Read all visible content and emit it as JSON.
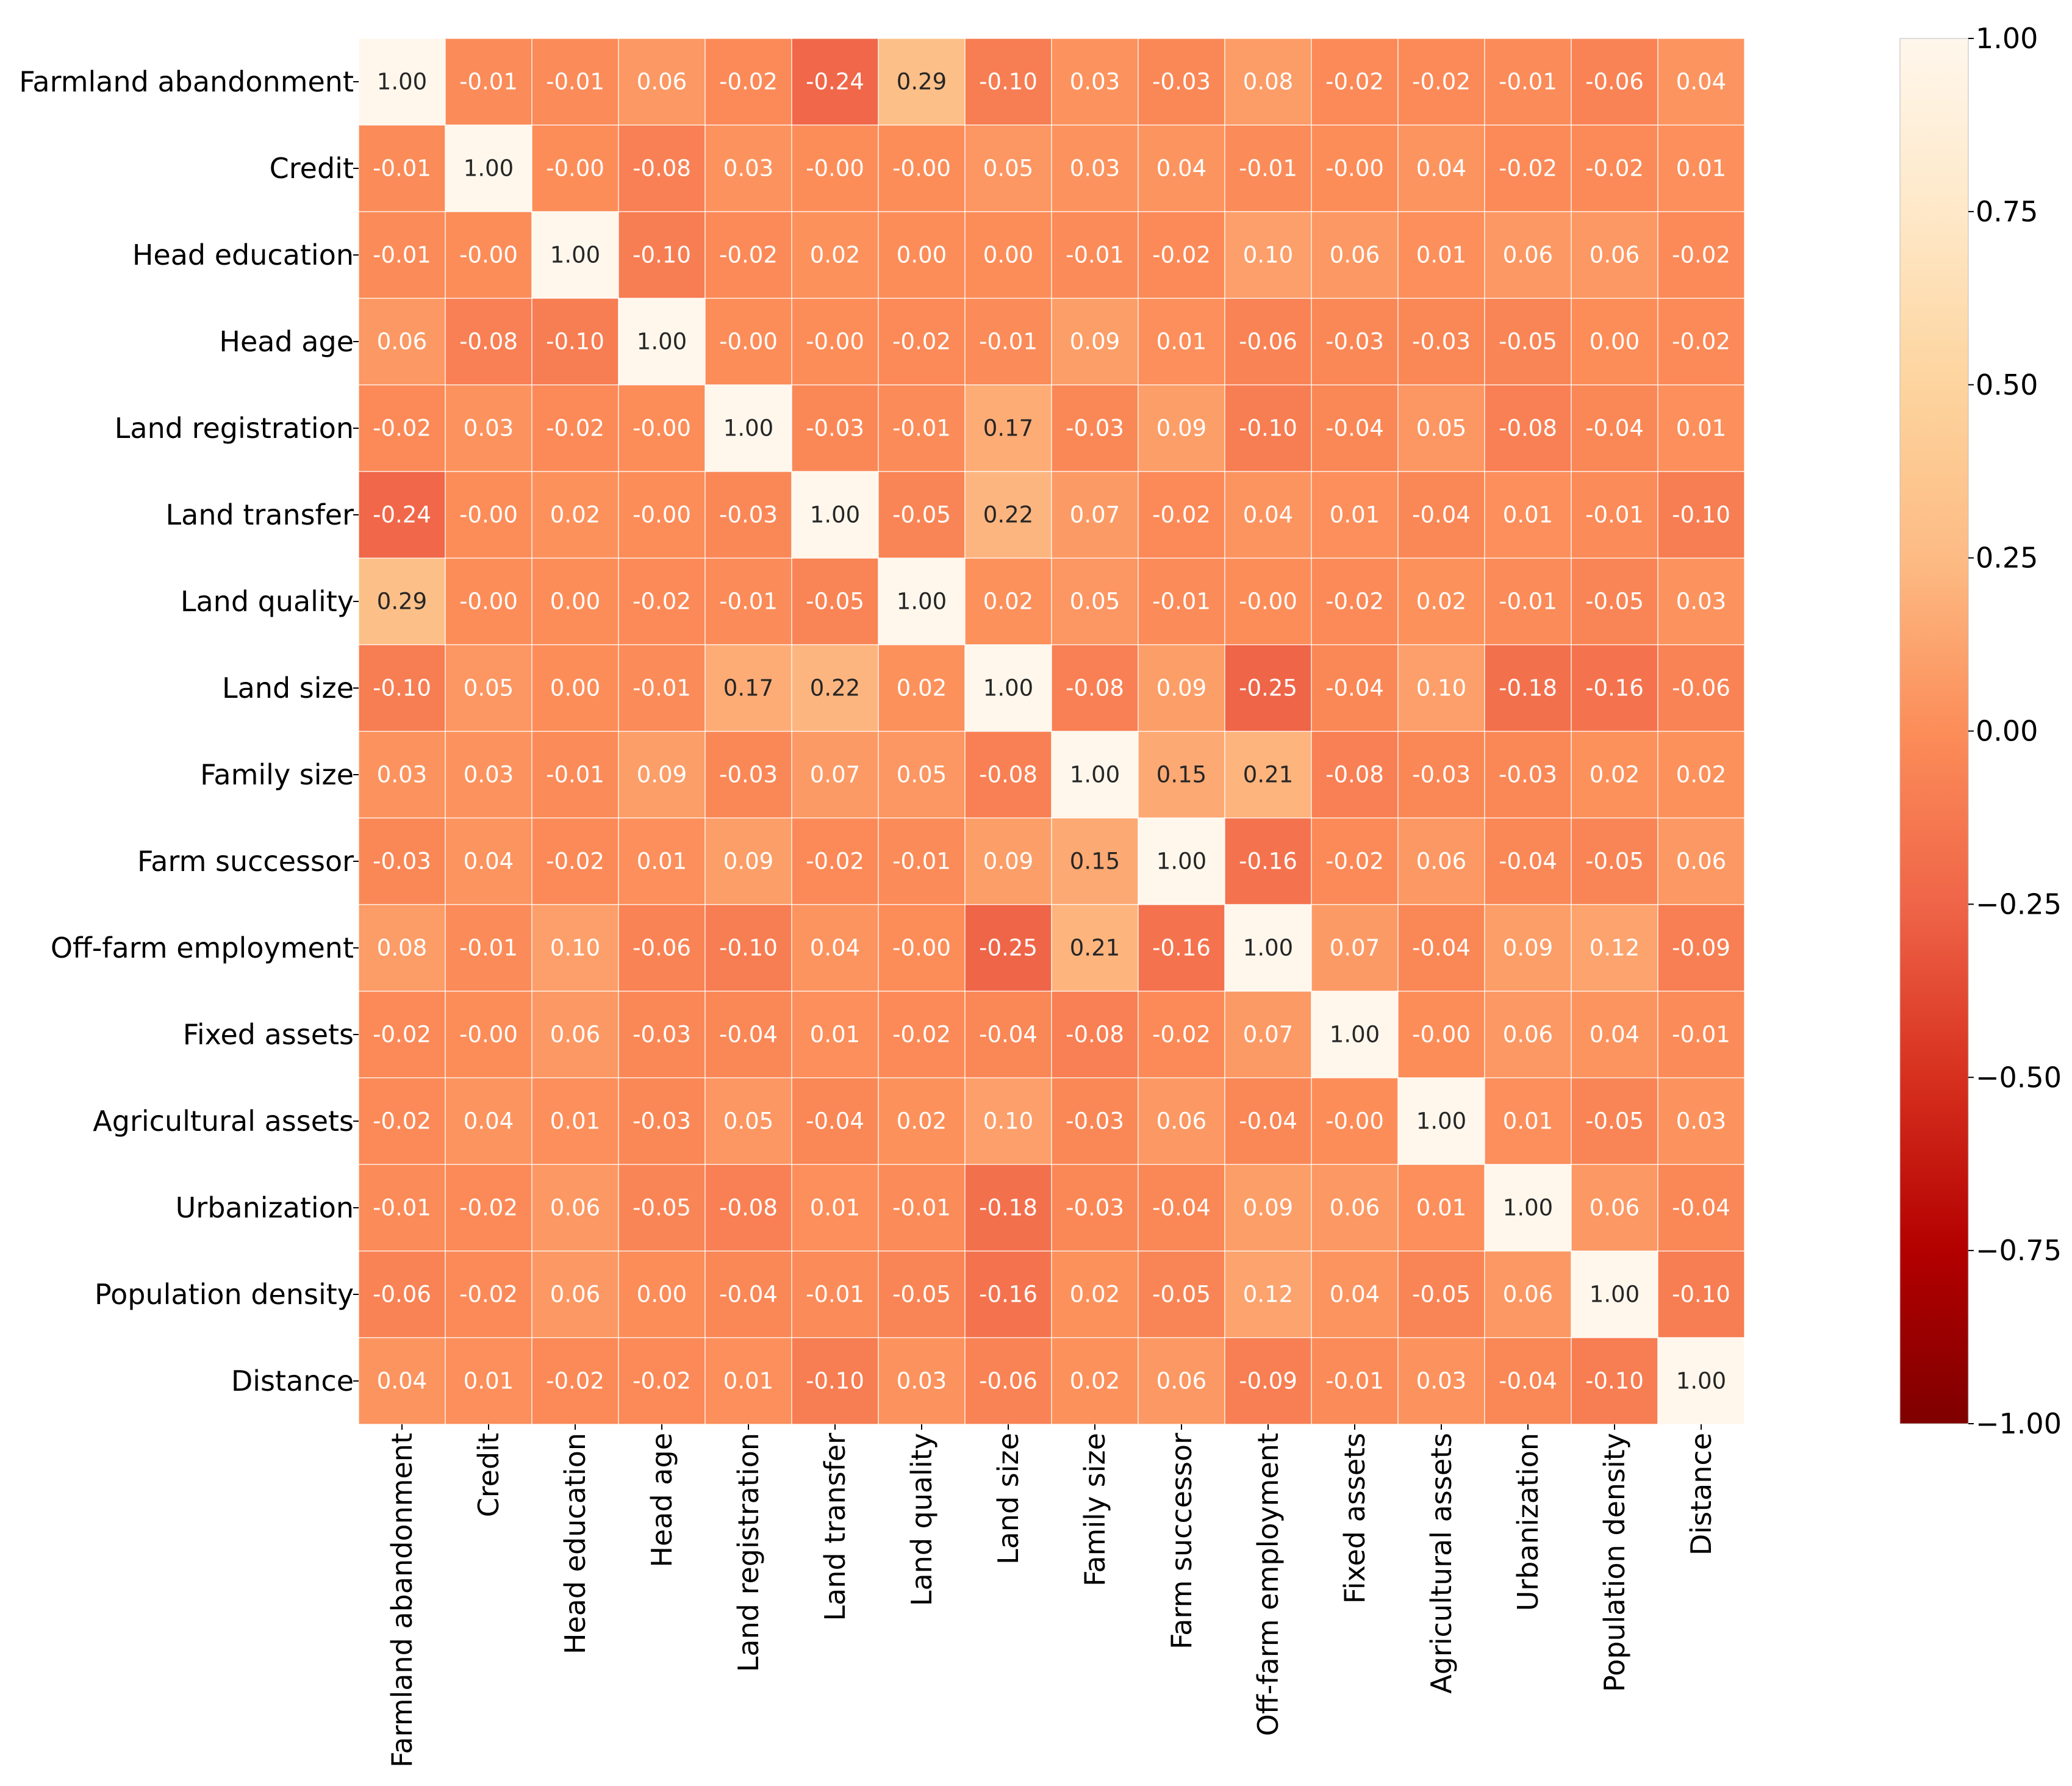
{
  "chart_data": {
    "type": "heatmap",
    "title": "",
    "xlabel": "",
    "ylabel": "",
    "variables": [
      "Farmland abandonment",
      "Credit",
      "Head education",
      "Head age",
      "Land registration",
      "Land transfer",
      "Land quality",
      "Land size",
      "Family size",
      "Farm successor",
      "Off-farm employment",
      "Fixed assets",
      "Agricultural assets",
      "Urbanization",
      "Population density",
      "Distance"
    ],
    "values": [
      [
        1.0,
        -0.01,
        -0.01,
        0.06,
        -0.02,
        -0.24,
        0.29,
        -0.1,
        0.03,
        -0.03,
        0.08,
        -0.02,
        -0.02,
        -0.01,
        -0.06,
        0.04
      ],
      [
        -0.01,
        1.0,
        -0.0,
        -0.08,
        0.03,
        -0.0,
        -0.0,
        0.05,
        0.03,
        0.04,
        -0.01,
        -0.0,
        0.04,
        -0.02,
        -0.02,
        0.01
      ],
      [
        -0.01,
        -0.0,
        1.0,
        -0.1,
        -0.02,
        0.02,
        0.0,
        0.0,
        -0.01,
        -0.02,
        0.1,
        0.06,
        0.01,
        0.06,
        0.06,
        -0.02
      ],
      [
        0.06,
        -0.08,
        -0.1,
        1.0,
        -0.0,
        -0.0,
        -0.02,
        -0.01,
        0.09,
        0.01,
        -0.06,
        -0.03,
        -0.03,
        -0.05,
        0.0,
        -0.02
      ],
      [
        -0.02,
        0.03,
        -0.02,
        -0.0,
        1.0,
        -0.03,
        -0.01,
        0.17,
        -0.03,
        0.09,
        -0.1,
        -0.04,
        0.05,
        -0.08,
        -0.04,
        0.01
      ],
      [
        -0.24,
        -0.0,
        0.02,
        -0.0,
        -0.03,
        1.0,
        -0.05,
        0.22,
        0.07,
        -0.02,
        0.04,
        0.01,
        -0.04,
        0.01,
        -0.01,
        -0.1
      ],
      [
        0.29,
        -0.0,
        0.0,
        -0.02,
        -0.01,
        -0.05,
        1.0,
        0.02,
        0.05,
        -0.01,
        -0.0,
        -0.02,
        0.02,
        -0.01,
        -0.05,
        0.03
      ],
      [
        -0.1,
        0.05,
        0.0,
        -0.01,
        0.17,
        0.22,
        0.02,
        1.0,
        -0.08,
        0.09,
        -0.25,
        -0.04,
        0.1,
        -0.18,
        -0.16,
        -0.06
      ],
      [
        0.03,
        0.03,
        -0.01,
        0.09,
        -0.03,
        0.07,
        0.05,
        -0.08,
        1.0,
        0.15,
        0.21,
        -0.08,
        -0.03,
        -0.03,
        0.02,
        0.02
      ],
      [
        -0.03,
        0.04,
        -0.02,
        0.01,
        0.09,
        -0.02,
        -0.01,
        0.09,
        0.15,
        1.0,
        -0.16,
        -0.02,
        0.06,
        -0.04,
        -0.05,
        0.06
      ],
      [
        0.08,
        -0.01,
        0.1,
        -0.06,
        -0.1,
        0.04,
        -0.0,
        -0.25,
        0.21,
        -0.16,
        1.0,
        0.07,
        -0.04,
        0.09,
        0.12,
        -0.09
      ],
      [
        -0.02,
        -0.0,
        0.06,
        -0.03,
        -0.04,
        0.01,
        -0.02,
        -0.04,
        -0.08,
        -0.02,
        0.07,
        1.0,
        -0.0,
        0.06,
        0.04,
        -0.01
      ],
      [
        -0.02,
        0.04,
        0.01,
        -0.03,
        0.05,
        -0.04,
        0.02,
        0.1,
        -0.03,
        0.06,
        -0.04,
        -0.0,
        1.0,
        0.01,
        -0.05,
        0.03
      ],
      [
        -0.01,
        -0.02,
        0.06,
        -0.05,
        -0.08,
        0.01,
        -0.01,
        -0.18,
        -0.03,
        -0.04,
        0.09,
        0.06,
        0.01,
        1.0,
        0.06,
        -0.04
      ],
      [
        -0.06,
        -0.02,
        0.06,
        0.0,
        -0.04,
        -0.01,
        -0.05,
        -0.16,
        0.02,
        -0.05,
        0.12,
        0.04,
        -0.05,
        0.06,
        1.0,
        -0.1
      ],
      [
        0.04,
        0.01,
        -0.02,
        -0.02,
        0.01,
        -0.1,
        0.03,
        -0.06,
        0.02,
        0.06,
        -0.09,
        -0.01,
        0.03,
        -0.04,
        -0.1,
        1.0
      ]
    ],
    "value_labels": [
      [
        "1.00",
        "-0.01",
        "-0.01",
        "0.06",
        "-0.02",
        "-0.24",
        "0.29",
        "-0.10",
        "0.03",
        "-0.03",
        "0.08",
        "-0.02",
        "-0.02",
        "-0.01",
        "-0.06",
        "0.04"
      ],
      [
        "-0.01",
        "1.00",
        "-0.00",
        "-0.08",
        "0.03",
        "-0.00",
        "-0.00",
        "0.05",
        "0.03",
        "0.04",
        "-0.01",
        "-0.00",
        "0.04",
        "-0.02",
        "-0.02",
        "0.01"
      ],
      [
        "-0.01",
        "-0.00",
        "1.00",
        "-0.10",
        "-0.02",
        "0.02",
        "0.00",
        "0.00",
        "-0.01",
        "-0.02",
        "0.10",
        "0.06",
        "0.01",
        "0.06",
        "0.06",
        "-0.02"
      ],
      [
        "0.06",
        "-0.08",
        "-0.10",
        "1.00",
        "-0.00",
        "-0.00",
        "-0.02",
        "-0.01",
        "0.09",
        "0.01",
        "-0.06",
        "-0.03",
        "-0.03",
        "-0.05",
        "0.00",
        "-0.02"
      ],
      [
        "-0.02",
        "0.03",
        "-0.02",
        "-0.00",
        "1.00",
        "-0.03",
        "-0.01",
        "0.17",
        "-0.03",
        "0.09",
        "-0.10",
        "-0.04",
        "0.05",
        "-0.08",
        "-0.04",
        "0.01"
      ],
      [
        "-0.24",
        "-0.00",
        "0.02",
        "-0.00",
        "-0.03",
        "1.00",
        "-0.05",
        "0.22",
        "0.07",
        "-0.02",
        "0.04",
        "0.01",
        "-0.04",
        "0.01",
        "-0.01",
        "-0.10"
      ],
      [
        "0.29",
        "-0.00",
        "0.00",
        "-0.02",
        "-0.01",
        "-0.05",
        "1.00",
        "0.02",
        "0.05",
        "-0.01",
        "-0.00",
        "-0.02",
        "0.02",
        "-0.01",
        "-0.05",
        "0.03"
      ],
      [
        "-0.10",
        "0.05",
        "0.00",
        "-0.01",
        "0.17",
        "0.22",
        "0.02",
        "1.00",
        "-0.08",
        "0.09",
        "-0.25",
        "-0.04",
        "0.10",
        "-0.18",
        "-0.16",
        "-0.06"
      ],
      [
        "0.03",
        "0.03",
        "-0.01",
        "0.09",
        "-0.03",
        "0.07",
        "0.05",
        "-0.08",
        "1.00",
        "0.15",
        "0.21",
        "-0.08",
        "-0.03",
        "-0.03",
        "0.02",
        "0.02"
      ],
      [
        "-0.03",
        "0.04",
        "-0.02",
        "0.01",
        "0.09",
        "-0.02",
        "-0.01",
        "0.09",
        "0.15",
        "1.00",
        "-0.16",
        "-0.02",
        "0.06",
        "-0.04",
        "-0.05",
        "0.06"
      ],
      [
        "0.08",
        "-0.01",
        "0.10",
        "-0.06",
        "-0.10",
        "0.04",
        "-0.00",
        "-0.25",
        "0.21",
        "-0.16",
        "1.00",
        "0.07",
        "-0.04",
        "0.09",
        "0.12",
        "-0.09"
      ],
      [
        "-0.02",
        "-0.00",
        "0.06",
        "-0.03",
        "-0.04",
        "0.01",
        "-0.02",
        "-0.04",
        "-0.08",
        "-0.02",
        "0.07",
        "1.00",
        "-0.00",
        "0.06",
        "0.04",
        "-0.01"
      ],
      [
        "-0.02",
        "0.04",
        "0.01",
        "-0.03",
        "0.05",
        "-0.04",
        "0.02",
        "0.10",
        "-0.03",
        "0.06",
        "-0.04",
        "-0.00",
        "1.00",
        "0.01",
        "-0.05",
        "0.03"
      ],
      [
        "-0.01",
        "-0.02",
        "0.06",
        "-0.05",
        "-0.08",
        "0.01",
        "-0.01",
        "-0.18",
        "-0.03",
        "-0.04",
        "0.09",
        "0.06",
        "0.01",
        "1.00",
        "0.06",
        "-0.04"
      ],
      [
        "-0.06",
        "-0.02",
        "0.06",
        "0.00",
        "-0.04",
        "-0.01",
        "-0.05",
        "-0.16",
        "0.02",
        "-0.05",
        "0.12",
        "0.04",
        "-0.05",
        "0.06",
        "1.00",
        "-0.10"
      ],
      [
        "0.04",
        "0.01",
        "-0.02",
        "-0.02",
        "0.01",
        "-0.10",
        "0.03",
        "-0.06",
        "0.02",
        "0.06",
        "-0.09",
        "-0.01",
        "0.03",
        "-0.04",
        "-0.10",
        "1.00"
      ]
    ],
    "vmin": -1.0,
    "vmax": 1.0,
    "colormap": "OrRd (reversed)",
    "colormap_stops": [
      "#7f0000",
      "#b30000",
      "#d7301f",
      "#ef6548",
      "#fc8d59",
      "#fdbb84",
      "#fdd49e",
      "#fee8c8",
      "#fff7ec"
    ],
    "colorbar": {
      "placement": "right",
      "tick_values": [
        1.0,
        0.75,
        0.5,
        0.25,
        0.0,
        -0.25,
        -0.5,
        -0.75,
        -1.0
      ],
      "tick_labels": [
        "1.00",
        "0.75",
        "0.50",
        "0.25",
        "0.00",
        "−0.25",
        "−0.50",
        "−0.75",
        "−1.00"
      ]
    },
    "grid": false,
    "legend": "none"
  }
}
